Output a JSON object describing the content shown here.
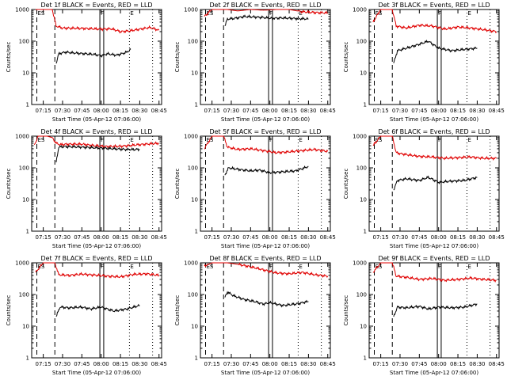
{
  "colors": {
    "events": "#000000",
    "lld": "#e00000",
    "axis": "#000000",
    "background": "#ffffff"
  },
  "x_tick_labels": [
    "07:15",
    "07:30",
    "07:45",
    "08:00",
    "08:15",
    "08:30",
    "08:45"
  ],
  "y_tick_labels": [
    "1",
    "10",
    "100",
    "1000"
  ],
  "markers": [
    {
      "label": "ES",
      "time": "07:10",
      "style": "dashed"
    },
    {
      "label": "",
      "time": "07:24",
      "style": "dashed"
    },
    {
      "label": "F",
      "time": "07:59",
      "style": "solid"
    },
    {
      "label": "",
      "time": "08:02",
      "style": "solid"
    },
    {
      "label": "E",
      "time": "08:22",
      "style": "dotted"
    },
    {
      "label": "",
      "time": "08:40",
      "style": "dotted"
    }
  ],
  "chart_data": [
    {
      "type": "line",
      "title": "Det 1f BLACK = Events, RED = LLD",
      "xlabel": "Start Time (05-Apr-12 07:06:00)",
      "ylabel": "Counts/sec",
      "xlim": [
        "07:06",
        "08:47"
      ],
      "ylim": [
        1,
        1000
      ],
      "yscale": "log",
      "legend": "none",
      "series": [
        {
          "color": "#e00000",
          "x": [
            "07:09",
            "07:14",
            "07:18",
            "07:22",
            "07:25",
            "07:30",
            "07:40",
            "07:50",
            "08:00",
            "08:08",
            "08:15",
            "08:22",
            "08:30",
            "08:38",
            "08:45"
          ],
          "y": [
            1000,
            1000,
            1000,
            1000,
            300,
            260,
            255,
            250,
            240,
            245,
            200,
            210,
            240,
            270,
            220
          ]
        },
        {
          "color": "#000000",
          "x": [
            "07:25",
            "07:27",
            "07:32",
            "07:40",
            "07:48",
            "07:55",
            "08:00",
            "08:05",
            "08:12",
            "08:20",
            "08:23"
          ],
          "y": [
            20,
            40,
            45,
            42,
            40,
            38,
            35,
            40,
            36,
            45,
            55
          ]
        }
      ]
    },
    {
      "type": "line",
      "title": "Det 2f BLACK = Events, RED = LLD",
      "xlabel": "Start Time (05-Apr-12 07:06:00)",
      "ylabel": "Counts/sec",
      "xlim": [
        "07:06",
        "08:47"
      ],
      "ylim": [
        1,
        1000
      ],
      "yscale": "log",
      "legend": "none",
      "series": [
        {
          "color": "#e00000",
          "x": [
            "07:09",
            "07:15",
            "07:20",
            "07:24",
            "07:27",
            "07:35",
            "07:45",
            "07:55",
            "08:05",
            "08:15",
            "08:25",
            "08:35",
            "08:45"
          ],
          "y": [
            600,
            1000,
            1000,
            1000,
            1000,
            900,
            1000,
            950,
            1000,
            1000,
            850,
            800,
            780
          ]
        },
        {
          "color": "#000000",
          "x": [
            "07:25",
            "07:27",
            "07:32",
            "07:40",
            "07:48",
            "07:55",
            "08:00",
            "08:10",
            "08:20",
            "08:30"
          ],
          "y": [
            300,
            500,
            520,
            600,
            580,
            560,
            530,
            540,
            520,
            500
          ]
        }
      ]
    },
    {
      "type": "line",
      "title": "Det 3f BLACK = Events, RED = LLD",
      "xlabel": "Start Time (05-Apr-12 07:06:00)",
      "ylabel": "Counts/sec",
      "xlim": [
        "07:06",
        "08:47"
      ],
      "ylim": [
        1,
        1000
      ],
      "yscale": "log",
      "legend": "none",
      "series": [
        {
          "color": "#e00000",
          "x": [
            "07:09",
            "07:15",
            "07:20",
            "07:24",
            "07:27",
            "07:35",
            "07:45",
            "07:55",
            "08:05",
            "08:15",
            "08:25",
            "08:35",
            "08:45"
          ],
          "y": [
            400,
            1000,
            1000,
            1000,
            300,
            260,
            320,
            300,
            240,
            280,
            260,
            230,
            200
          ]
        },
        {
          "color": "#000000",
          "x": [
            "07:25",
            "07:28",
            "07:35",
            "07:45",
            "07:52",
            "08:00",
            "08:10",
            "08:20",
            "08:30"
          ],
          "y": [
            20,
            50,
            60,
            80,
            100,
            60,
            50,
            55,
            60
          ]
        }
      ]
    },
    {
      "type": "line",
      "title": "Det 4f BLACK = Events, RED = LLD",
      "xlabel": "Start Time (05-Apr-12 07:06:00)",
      "ylabel": "Counts/sec",
      "xlim": [
        "07:06",
        "08:47"
      ],
      "ylim": [
        1,
        1000
      ],
      "yscale": "log",
      "legend": "none",
      "series": [
        {
          "color": "#e00000",
          "x": [
            "07:08",
            "07:11",
            "07:14",
            "07:18",
            "07:22",
            "07:25",
            "07:28",
            "07:35",
            "07:45",
            "07:55",
            "08:05",
            "08:15",
            "08:25",
            "08:35",
            "08:45"
          ],
          "y": [
            500,
            1000,
            1000,
            1000,
            900,
            600,
            540,
            560,
            560,
            500,
            470,
            480,
            520,
            560,
            600
          ]
        },
        {
          "color": "#000000",
          "x": [
            "07:25",
            "07:27",
            "07:30",
            "07:40",
            "07:50",
            "08:00",
            "08:10",
            "08:20",
            "08:30"
          ],
          "y": [
            150,
            450,
            470,
            460,
            440,
            420,
            400,
            380,
            380
          ]
        }
      ]
    },
    {
      "type": "line",
      "title": "Det 5f BLACK = Events, RED = LLD",
      "xlabel": "Start Time (05-Apr-12 07:06:00)",
      "ylabel": "Counts/sec",
      "xlim": [
        "07:06",
        "08:47"
      ],
      "ylim": [
        1,
        1000
      ],
      "yscale": "log",
      "legend": "none",
      "series": [
        {
          "color": "#e00000",
          "x": [
            "07:09",
            "07:15",
            "07:20",
            "07:24",
            "07:27",
            "07:35",
            "07:45",
            "07:55",
            "08:05",
            "08:15",
            "08:25",
            "08:35",
            "08:45"
          ],
          "y": [
            400,
            1000,
            1000,
            1000,
            450,
            380,
            400,
            350,
            300,
            320,
            350,
            380,
            330
          ]
        },
        {
          "color": "#000000",
          "x": [
            "07:25",
            "07:28",
            "07:35",
            "07:45",
            "07:52",
            "08:00",
            "08:10",
            "08:20",
            "08:30"
          ],
          "y": [
            60,
            100,
            90,
            80,
            85,
            70,
            75,
            80,
            110
          ]
        }
      ]
    },
    {
      "type": "line",
      "title": "Det 6f BLACK = Events, RED = LLD",
      "xlabel": "Start Time (05-Apr-12 07:06:00)",
      "ylabel": "Counts/sec",
      "xlim": [
        "07:06",
        "08:47"
      ],
      "ylim": [
        1,
        1000
      ],
      "yscale": "log",
      "legend": "none",
      "series": [
        {
          "color": "#e00000",
          "x": [
            "07:09",
            "07:15",
            "07:20",
            "07:24",
            "07:27",
            "07:35",
            "07:45",
            "07:55",
            "08:05",
            "08:15",
            "08:25",
            "08:35",
            "08:45"
          ],
          "y": [
            500,
            1000,
            1000,
            1000,
            300,
            260,
            230,
            220,
            200,
            210,
            220,
            200,
            200
          ]
        },
        {
          "color": "#000000",
          "x": [
            "07:25",
            "07:28",
            "07:35",
            "07:45",
            "07:52",
            "08:00",
            "08:10",
            "08:20",
            "08:30"
          ],
          "y": [
            20,
            40,
            45,
            40,
            50,
            35,
            38,
            40,
            50
          ]
        }
      ]
    },
    {
      "type": "line",
      "title": "Det 7f BLACK = Events, RED = LLD",
      "xlabel": "Start Time (05-Apr-12 07:06:00)",
      "ylabel": "Counts/sec",
      "xlim": [
        "07:06",
        "08:47"
      ],
      "ylim": [
        1,
        1000
      ],
      "yscale": "log",
      "legend": "none",
      "series": [
        {
          "color": "#e00000",
          "x": [
            "07:09",
            "07:15",
            "07:20",
            "07:24",
            "07:27",
            "07:35",
            "07:45",
            "07:55",
            "08:05",
            "08:15",
            "08:25",
            "08:35",
            "08:45"
          ],
          "y": [
            500,
            1000,
            1000,
            1000,
            420,
            400,
            440,
            410,
            380,
            360,
            430,
            450,
            400
          ]
        },
        {
          "color": "#000000",
          "x": [
            "07:25",
            "07:28",
            "07:35",
            "07:45",
            "07:52",
            "08:00",
            "08:10",
            "08:20",
            "08:30"
          ],
          "y": [
            20,
            40,
            38,
            40,
            35,
            40,
            30,
            35,
            45
          ]
        }
      ]
    },
    {
      "type": "line",
      "title": "Det 8f BLACK = Events, RED = LLD",
      "xlabel": "Start Time (05-Apr-12 07:06:00)",
      "ylabel": "Counts/sec",
      "xlim": [
        "07:06",
        "08:47"
      ],
      "ylim": [
        1,
        1000
      ],
      "yscale": "log",
      "legend": "none",
      "series": [
        {
          "color": "#e00000",
          "x": [
            "07:09",
            "07:15",
            "07:20",
            "07:24",
            "07:27",
            "07:35",
            "07:45",
            "07:55",
            "08:05",
            "08:15",
            "08:25",
            "08:35",
            "08:45"
          ],
          "y": [
            800,
            1000,
            1000,
            1000,
            1000,
            900,
            750,
            600,
            480,
            450,
            500,
            420,
            380
          ]
        },
        {
          "color": "#000000",
          "x": [
            "07:25",
            "07:27",
            "07:32",
            "07:40",
            "07:48",
            "07:55",
            "08:00",
            "08:10",
            "08:20",
            "08:30"
          ],
          "y": [
            80,
            120,
            90,
            70,
            60,
            50,
            55,
            45,
            50,
            60
          ]
        }
      ]
    },
    {
      "type": "line",
      "title": "Det 9f BLACK = Events, RED = LLD",
      "xlabel": "Start Time (05-Apr-12 07:06:00)",
      "ylabel": "Counts/sec",
      "xlim": [
        "07:06",
        "08:47"
      ],
      "ylim": [
        1,
        1000
      ],
      "yscale": "log",
      "legend": "none",
      "series": [
        {
          "color": "#e00000",
          "x": [
            "07:09",
            "07:15",
            "07:20",
            "07:24",
            "07:27",
            "07:35",
            "07:45",
            "07:55",
            "08:05",
            "08:15",
            "08:25",
            "08:35",
            "08:45"
          ],
          "y": [
            500,
            1000,
            1000,
            1000,
            380,
            350,
            300,
            320,
            280,
            300,
            330,
            300,
            280
          ]
        },
        {
          "color": "#000000",
          "x": [
            "07:25",
            "07:28",
            "07:35",
            "07:45",
            "07:52",
            "08:00",
            "08:10",
            "08:20",
            "08:30"
          ],
          "y": [
            20,
            40,
            38,
            42,
            35,
            40,
            38,
            40,
            50
          ]
        }
      ]
    }
  ]
}
